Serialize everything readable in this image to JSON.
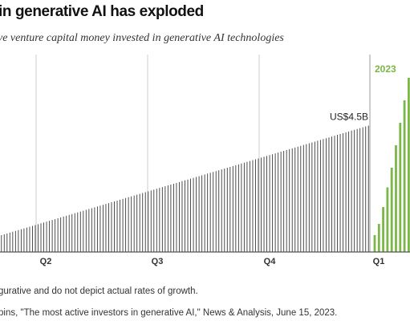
{
  "header": {
    "title": "in generative AI has exploded",
    "subtitle": "ve venture capital money invested in generative AI technologies"
  },
  "notes": {
    "disclaimer": "gurative and do not depict actual rates of growth.",
    "source": "pins, \"The most active investors in generative AI,\" News & Analysis, June 15, 2023."
  },
  "colors": {
    "bar_2022": "#3a3a3a",
    "bar_2023": "#7ab648",
    "year_label": "#7ab648",
    "gridline": "#cccccc",
    "divider": "#aaaaaa",
    "baseline": "#555555"
  },
  "chart_data": {
    "type": "bar",
    "title": "",
    "xlabel": "",
    "ylabel": "",
    "illustrative": true,
    "grid": "vertical lines at quarter starts",
    "quarter_labels": [
      "Q2",
      "Q3",
      "Q4",
      "Q1"
    ],
    "year_label": "2023",
    "annotation": {
      "text": "US$4.5B",
      "value": 4.5
    },
    "series": [
      {
        "key": "2022",
        "values": [
          0.6,
          0.63,
          0.66,
          0.69,
          0.72,
          0.75,
          0.78,
          0.81,
          0.84,
          0.87,
          0.9,
          0.93,
          0.96,
          0.99,
          1.02,
          1.05,
          1.08,
          1.11,
          1.14,
          1.17,
          1.2,
          1.23,
          1.26,
          1.29,
          1.32,
          1.35,
          1.38,
          1.41,
          1.44,
          1.47,
          1.5,
          1.53,
          1.56,
          1.59,
          1.62,
          1.65,
          1.68,
          1.71,
          1.74,
          1.77,
          1.8,
          1.83,
          1.86,
          1.89,
          1.92,
          1.95,
          1.98,
          2.01,
          2.04,
          2.07,
          2.1,
          2.13,
          2.16,
          2.19,
          2.22,
          2.25,
          2.28,
          2.31,
          2.34,
          2.37,
          2.4,
          2.43,
          2.46,
          2.49,
          2.52,
          2.55,
          2.58,
          2.61,
          2.64,
          2.67,
          2.7,
          2.73,
          2.76,
          2.79,
          2.82,
          2.85,
          2.88,
          2.91,
          2.94,
          2.97,
          3.0,
          3.03,
          3.06,
          3.09,
          3.12,
          3.15,
          3.18,
          3.21,
          3.24,
          3.27,
          3.3,
          3.33,
          3.36,
          3.39,
          3.42,
          3.45,
          3.48,
          3.51,
          3.54,
          3.57,
          3.6,
          3.63,
          3.66,
          3.69,
          3.72,
          3.75,
          3.78,
          3.81,
          3.84,
          3.87,
          3.9,
          3.93,
          3.96,
          3.99,
          4.02,
          4.05,
          4.08,
          4.11,
          4.14,
          4.17,
          4.2,
          4.23,
          4.26,
          4.29,
          4.32,
          4.35,
          4.38,
          4.41,
          4.44,
          4.47,
          4.5
        ]
      },
      {
        "key": "2023",
        "values": [
          0.6,
          1.0,
          1.6,
          2.3,
          3.0,
          3.8,
          4.6,
          5.4,
          6.2
        ]
      }
    ]
  }
}
